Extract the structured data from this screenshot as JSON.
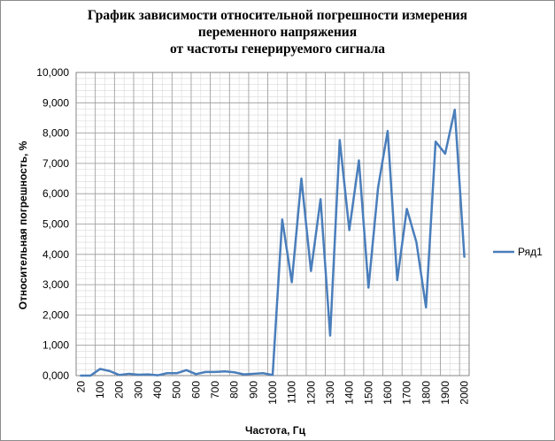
{
  "chart_data": {
    "type": "line",
    "title": [
      "График зависимости относительной погрешности измерения",
      "переменного напряжения",
      "от частоты генерируемого сигнала"
    ],
    "xlabel": "Частота, Гц",
    "ylabel": "Относительная погрешность, %",
    "ylim": [
      0,
      10
    ],
    "y_ticks": [
      "0,000",
      "1,000",
      "2,000",
      "3,000",
      "4,000",
      "5,000",
      "6,000",
      "7,000",
      "8,000",
      "9,000",
      "10,000"
    ],
    "x_tick_labels": [
      "20",
      "100",
      "200",
      "300",
      "400",
      "500",
      "600",
      "700",
      "800",
      "900",
      "1000",
      "1100",
      "1200",
      "1300",
      "1400",
      "1500",
      "1600",
      "1700",
      "1800",
      "1900",
      "2000"
    ],
    "x": [
      20,
      50,
      100,
      150,
      200,
      250,
      300,
      350,
      400,
      450,
      500,
      550,
      600,
      650,
      700,
      750,
      800,
      850,
      900,
      950,
      1000,
      1050,
      1100,
      1150,
      1200,
      1250,
      1300,
      1350,
      1400,
      1450,
      1500,
      1550,
      1600,
      1650,
      1700,
      1750,
      1800,
      1850,
      1900,
      1950,
      2000
    ],
    "series": [
      {
        "name": "Ряд1",
        "color": "#4a7ebb",
        "values": [
          0.0,
          0.0,
          0.22,
          0.15,
          0.02,
          0.06,
          0.03,
          0.04,
          0.01,
          0.08,
          0.08,
          0.18,
          0.05,
          0.12,
          0.12,
          0.14,
          0.11,
          0.04,
          0.06,
          0.08,
          0.02,
          5.15,
          3.08,
          6.5,
          3.45,
          5.82,
          1.32,
          7.77,
          4.8,
          7.1,
          2.9,
          6.2,
          8.07,
          3.15,
          5.5,
          4.4,
          2.25,
          7.72,
          7.32,
          8.77,
          3.92
        ]
      }
    ],
    "legend_position": "right",
    "grid": true
  }
}
